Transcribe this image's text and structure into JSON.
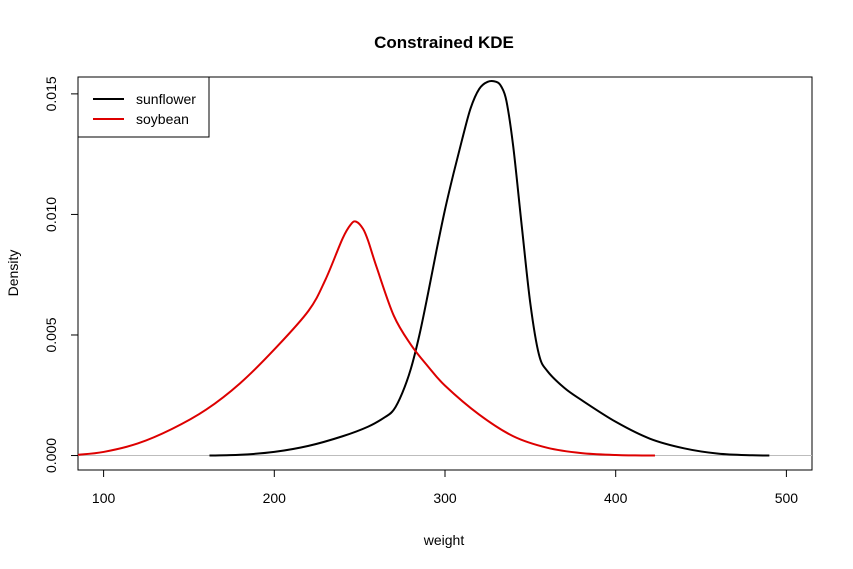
{
  "chart_data": {
    "type": "line",
    "title": "Constrained KDE",
    "xlabel": "weight",
    "ylabel": "Density",
    "xlim": [
      85,
      515
    ],
    "ylim": [
      -0.0006,
      0.0157
    ],
    "x_ticks": [
      100,
      200,
      300,
      400,
      500
    ],
    "x_tick_labels": [
      "100",
      "200",
      "300",
      "400",
      "500"
    ],
    "y_ticks": [
      0.0,
      0.005,
      0.01,
      0.015
    ],
    "y_tick_labels": [
      "0.000",
      "0.005",
      "0.010",
      "0.015"
    ],
    "grid": false,
    "baseline": 0,
    "legend": {
      "position": "top-left"
    },
    "series": [
      {
        "name": "sunflower",
        "color": "#000000",
        "x": [
          162,
          180,
          200,
          220,
          240,
          255,
          265,
          270,
          275,
          280,
          285,
          290,
          295,
          300,
          305,
          310,
          315,
          320,
          325,
          330,
          333,
          336,
          340,
          345,
          350,
          355,
          360,
          370,
          380,
          400,
          420,
          440,
          460,
          480,
          490
        ],
        "y": [
          0.0,
          3e-05,
          0.00015,
          0.0004,
          0.0008,
          0.0012,
          0.0016,
          0.0019,
          0.0026,
          0.0036,
          0.005,
          0.0067,
          0.0085,
          0.0102,
          0.0117,
          0.0131,
          0.0144,
          0.0152,
          0.0155,
          0.0155,
          0.0153,
          0.0147,
          0.0128,
          0.0095,
          0.0063,
          0.0042,
          0.0035,
          0.0028,
          0.0023,
          0.0014,
          0.0007,
          0.0003,
          8e-05,
          1e-05,
          0.0
        ]
      },
      {
        "name": "soybean",
        "color": "#dd0000",
        "x": [
          85,
          100,
          120,
          140,
          160,
          180,
          200,
          220,
          230,
          240,
          245,
          248,
          252,
          255,
          260,
          270,
          280,
          290,
          300,
          320,
          340,
          360,
          380,
          400,
          410,
          423
        ],
        "y": [
          3e-05,
          0.00015,
          0.0005,
          0.0011,
          0.0019,
          0.003,
          0.0044,
          0.006,
          0.0073,
          0.009,
          0.0096,
          0.0097,
          0.0094,
          0.0089,
          0.0078,
          0.0058,
          0.0046,
          0.0037,
          0.0029,
          0.0017,
          0.0008,
          0.00032,
          0.0001,
          2e-05,
          5e-06,
          0.0
        ]
      }
    ]
  }
}
